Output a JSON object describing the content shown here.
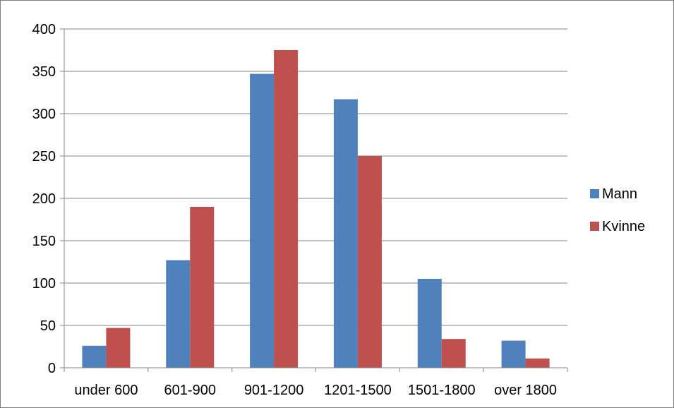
{
  "chart_data": {
    "type": "bar",
    "categories": [
      "under 600",
      "601-900",
      "901-1200",
      "1201-1500",
      "1501-1800",
      "over 1800"
    ],
    "series": [
      {
        "name": "Mann",
        "color": "#4f81bd",
        "values": [
          26,
          127,
          347,
          317,
          105,
          32
        ]
      },
      {
        "name": "Kvinne",
        "color": "#c0504d",
        "values": [
          47,
          190,
          375,
          250,
          34,
          11
        ]
      }
    ],
    "ylim": [
      0,
      400
    ],
    "yticks": [
      0,
      50,
      100,
      150,
      200,
      250,
      300,
      350,
      400
    ],
    "grid": true,
    "legend_position": "right"
  }
}
